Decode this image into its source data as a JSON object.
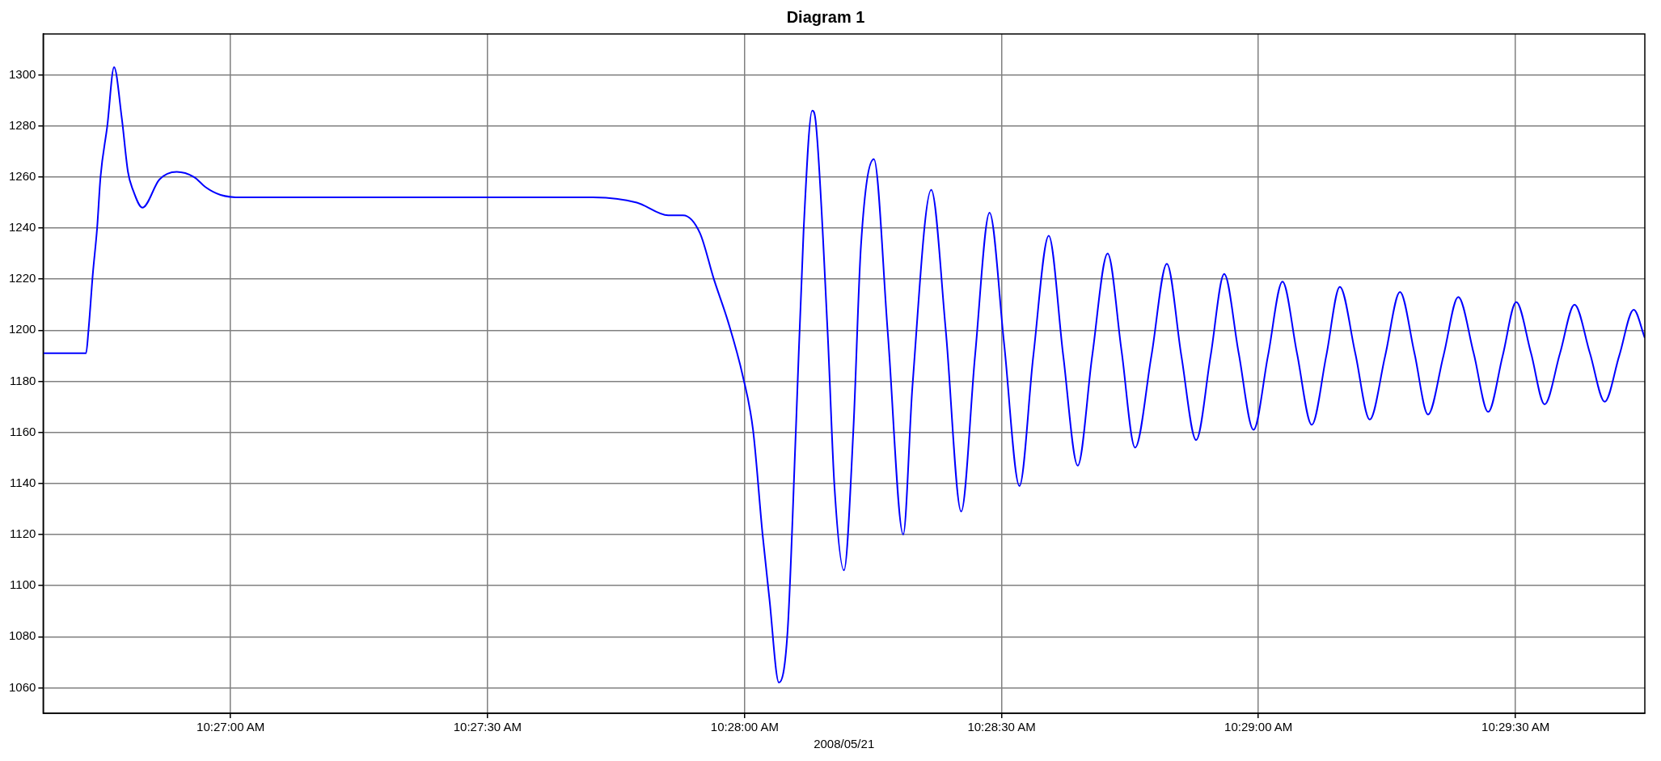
{
  "chart_data": {
    "type": "line",
    "title": "Diagram 1",
    "xlabel": "2008/05/21",
    "x": [
      10.44392,
      10.44531,
      10.44539,
      10.44553,
      10.44567,
      10.44578,
      10.446,
      10.44622,
      10.44647,
      10.44667,
      10.44683,
      10.44714,
      10.44769,
      10.44825,
      10.44881,
      10.44919,
      10.44967,
      10.45036,
      10.46175,
      10.46317,
      10.46419,
      10.46467,
      10.46522,
      10.46567,
      10.46614,
      10.46661,
      10.46694,
      10.46725,
      10.46747,
      10.46778,
      10.46806,
      10.46833,
      10.46858,
      10.46886,
      10.46897,
      10.46936,
      10.46958,
      10.46989,
      10.47019,
      10.47044,
      10.47086,
      10.47131,
      10.47181,
      10.47211,
      10.47272,
      10.47319,
      10.47369,
      10.47414,
      10.47461,
      10.47508,
      10.47558,
      10.47603,
      10.47653,
      10.477,
      10.47747,
      10.47794,
      10.47844,
      10.47889,
      10.47933,
      10.47986,
      10.48036,
      10.48083,
      10.48131,
      10.48178,
      10.48222,
      10.48269,
      10.48317,
      10.48364,
      10.48411,
      10.48458,
      10.48506,
      10.48553,
      10.48597,
      10.48647,
      10.48694,
      10.48744,
      10.48792,
      10.48839,
      10.48883,
      10.48933,
      10.48981,
      10.49031,
      10.49078,
      10.49125,
      10.49169,
      10.49217,
      10.49261,
      10.49311,
      10.49358,
      10.49408,
      10.49456,
      10.49503,
      10.4955,
      10.49586
    ],
    "series": [
      {
        "color": "#0000ff",
        "values": [
          1191,
          1191,
          1200,
          1222,
          1240,
          1260,
          1280,
          1303,
          1283,
          1262,
          1255,
          1248,
          1259,
          1262,
          1260,
          1256,
          1253,
          1252,
          1252,
          1250,
          1245,
          1245,
          1238,
          1220,
          1203,
          1182,
          1161,
          1120,
          1095,
          1062,
          1082,
          1161,
          1239,
          1286,
          1282,
          1199,
          1139,
          1106,
          1160,
          1233,
          1267,
          1199,
          1120,
          1178,
          1255,
          1200,
          1129,
          1190,
          1246,
          1195,
          1139,
          1190,
          1237,
          1190,
          1147,
          1190,
          1230,
          1192,
          1154,
          1190,
          1226,
          1190,
          1157,
          1190,
          1222,
          1191,
          1161,
          1190,
          1219,
          1191,
          1163,
          1190,
          1217,
          1191,
          1165,
          1190,
          1215,
          1191,
          1167,
          1190,
          1213,
          1191,
          1168,
          1190,
          1211,
          1191,
          1171,
          1191,
          1210,
          1191,
          1172,
          1190,
          1208,
          1197
        ]
      }
    ],
    "xlim": [
      10.44392,
      10.49586
    ],
    "xticks": [
      {
        "value": 10.45,
        "label": "10:27:00 AM"
      },
      {
        "value": 10.45833,
        "label": "10:27:30 AM"
      },
      {
        "value": 10.46667,
        "label": "10:28:00 AM"
      },
      {
        "value": 10.475,
        "label": "10:28:30 AM"
      },
      {
        "value": 10.48333,
        "label": "10:29:00 AM"
      },
      {
        "value": 10.49167,
        "label": "10:29:30 AM"
      }
    ],
    "ylim": [
      1050,
      1316
    ],
    "yticks": [
      1060,
      1080,
      1100,
      1120,
      1140,
      1160,
      1180,
      1200,
      1220,
      1240,
      1260,
      1280,
      1300
    ],
    "grid": true,
    "legend": false,
    "marker": "none",
    "line_style": "solid"
  }
}
